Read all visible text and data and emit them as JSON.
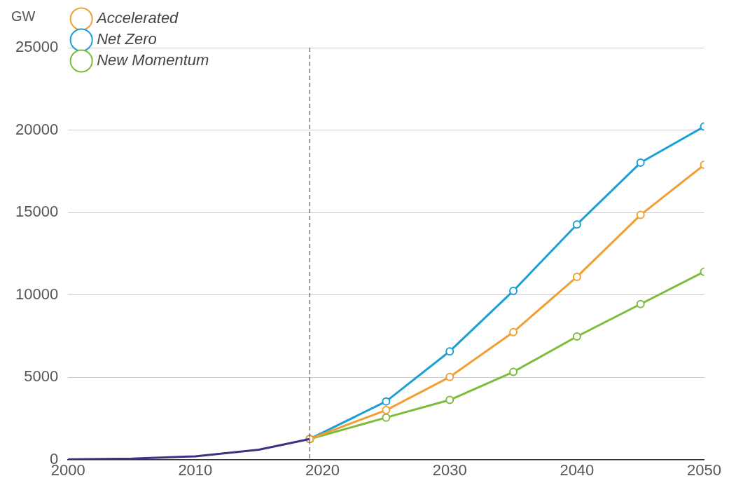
{
  "chart_data": {
    "type": "line",
    "ylabel": "GW",
    "xlim": [
      2000,
      2050
    ],
    "xticks": [
      2000,
      2010,
      2020,
      2030,
      2040,
      2050
    ],
    "ylim": [
      0,
      25000
    ],
    "yticks": [
      0,
      5000,
      10000,
      15000,
      20000,
      25000
    ],
    "grid": "y",
    "legend": "top left",
    "line_style": "solid",
    "ref_lines": [
      {
        "axis": "x",
        "value": 2019,
        "label": null,
        "color": "#555555",
        "line_style": "dashed"
      }
    ],
    "series": [
      {
        "color": "#3f3184",
        "marker": "none",
        "x": [
          2000,
          2005,
          2010,
          2015,
          2019
        ],
        "values": [
          20,
          60,
          200,
          600,
          1250
        ]
      },
      {
        "name": "Accelerated",
        "color": "#f0a033",
        "marker": "circle",
        "x": [
          2019,
          2025,
          2030,
          2035,
          2040,
          2045,
          2050
        ],
        "values": [
          1250,
          3000,
          5010,
          7740,
          11090,
          14850,
          17890
        ]
      },
      {
        "name": "Net Zero",
        "color": "#1a9fd6",
        "marker": "circle",
        "x": [
          2019,
          2025,
          2030,
          2035,
          2040,
          2045,
          2050
        ],
        "values": [
          1250,
          3530,
          6570,
          10240,
          14270,
          18020,
          20210
        ]
      },
      {
        "name": "New Momentum",
        "color": "#7dbb3a",
        "marker": "circle",
        "x": [
          2019,
          2025,
          2030,
          2035,
          2040,
          2045,
          2050
        ],
        "values": [
          1250,
          2550,
          3620,
          5320,
          7470,
          9440,
          11400
        ]
      }
    ]
  }
}
